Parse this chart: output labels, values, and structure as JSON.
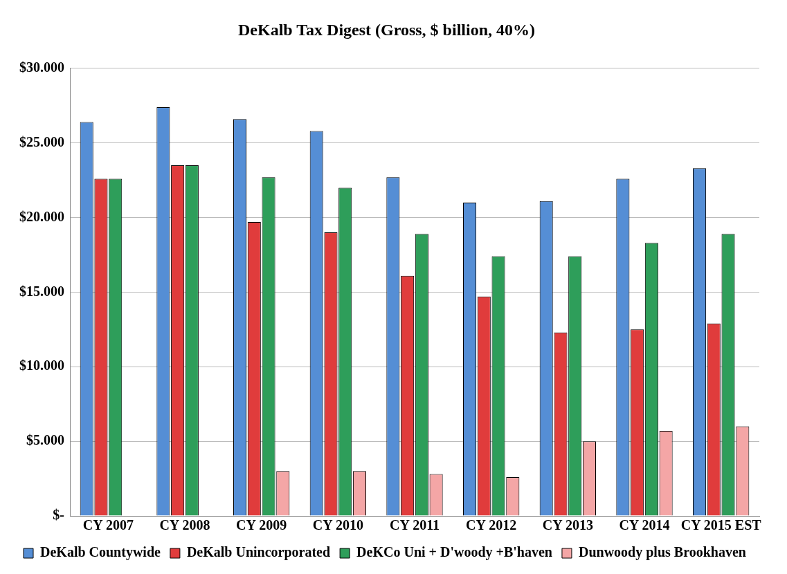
{
  "chart_data": {
    "type": "bar",
    "title": "DeKalb Tax Digest (Gross, $ billion, 40%)",
    "categories": [
      "CY 2007",
      "CY 2008",
      "CY 2009",
      "CY 2010",
      "CY 2011",
      "CY 2012",
      "CY 2013",
      "CY 2014",
      "CY 2015 EST"
    ],
    "series": [
      {
        "name": "DeKalb Countywide",
        "color": "#558ed5",
        "values": [
          26.4,
          27.4,
          26.6,
          25.8,
          22.7,
          21.0,
          21.1,
          22.6,
          23.3
        ]
      },
      {
        "name": "DeKalb Unincorporated",
        "color": "#e03c3c",
        "values": [
          22.6,
          23.5,
          19.7,
          19.0,
          16.1,
          14.7,
          12.3,
          12.5,
          12.9
        ]
      },
      {
        "name": "DeKCo Uni + D'woody +B'haven",
        "color": "#2e9e5a",
        "values": [
          22.6,
          23.5,
          22.7,
          22.0,
          18.9,
          17.4,
          17.4,
          18.3,
          18.9
        ]
      },
      {
        "name": "Dunwoody plus Brookhaven",
        "color": "#f4a6a6",
        "values": [
          null,
          null,
          3.0,
          3.0,
          2.8,
          2.6,
          5.0,
          5.7,
          6.0
        ]
      }
    ],
    "ylim": [
      0,
      30
    ],
    "yticks": [
      {
        "value": 0,
        "label": "$-"
      },
      {
        "value": 5,
        "label": "$5.000"
      },
      {
        "value": 10,
        "label": "$10.000"
      },
      {
        "value": 15,
        "label": "$15.000"
      },
      {
        "value": 20,
        "label": "$20.000"
      },
      {
        "value": 25,
        "label": "$25.000"
      },
      {
        "value": 30,
        "label": "$30.000"
      }
    ],
    "grid": "y",
    "legend": "bottom"
  }
}
